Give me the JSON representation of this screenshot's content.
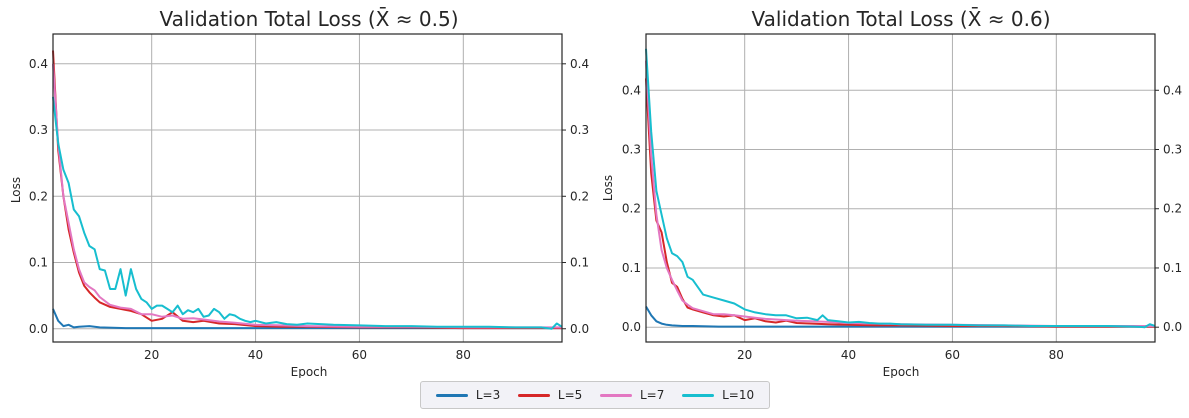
{
  "chart_data": [
    {
      "type": "line",
      "title": "Validation Total Loss (X̄ ≈ 0.5)",
      "xlabel": "Epoch",
      "ylabel": "Loss",
      "xlim": [
        1,
        99
      ],
      "ylim": [
        -0.02,
        0.445
      ],
      "xticks": [
        20,
        40,
        60,
        80
      ],
      "yticks": [
        0.0,
        0.1,
        0.2,
        0.3,
        0.4
      ],
      "grid": true,
      "right_ticks": true,
      "series": [
        {
          "name": "L=3",
          "color": "#1f77b4",
          "x": [
            1,
            2,
            3,
            4,
            5,
            6,
            8,
            10,
            15,
            20,
            30,
            40,
            60,
            80,
            99
          ],
          "values": [
            0.03,
            0.012,
            0.004,
            0.006,
            0.002,
            0.003,
            0.004,
            0.002,
            0.001,
            0.001,
            0.001,
            0.001,
            0.001,
            0.001,
            0.001
          ]
        },
        {
          "name": "L=5",
          "color": "#d62728",
          "x": [
            1,
            2,
            3,
            4,
            5,
            6,
            7,
            8,
            9,
            10,
            12,
            14,
            16,
            18,
            20,
            22,
            24,
            26,
            28,
            30,
            33,
            36,
            40,
            45,
            50,
            60,
            70,
            80,
            90,
            99
          ],
          "values": [
            0.42,
            0.27,
            0.2,
            0.15,
            0.115,
            0.085,
            0.065,
            0.055,
            0.047,
            0.04,
            0.033,
            0.03,
            0.027,
            0.022,
            0.012,
            0.015,
            0.025,
            0.012,
            0.01,
            0.012,
            0.008,
            0.007,
            0.004,
            0.003,
            0.003,
            0.002,
            0.002,
            0.001,
            0.001,
            0.001
          ]
        },
        {
          "name": "L=7",
          "color": "#e377c2",
          "x": [
            1,
            2,
            3,
            4,
            5,
            6,
            7,
            8,
            9,
            10,
            12,
            14,
            16,
            18,
            20,
            22,
            24,
            26,
            28,
            30,
            33,
            36,
            40,
            45,
            50,
            60,
            70,
            80,
            90,
            99
          ],
          "values": [
            0.4,
            0.28,
            0.2,
            0.16,
            0.12,
            0.09,
            0.07,
            0.063,
            0.058,
            0.048,
            0.036,
            0.032,
            0.03,
            0.022,
            0.022,
            0.018,
            0.02,
            0.015,
            0.016,
            0.014,
            0.011,
            0.009,
            0.006,
            0.005,
            0.004,
            0.003,
            0.003,
            0.002,
            0.002,
            0.002
          ]
        },
        {
          "name": "L=10",
          "color": "#17becf",
          "x": [
            1,
            2,
            3,
            4,
            5,
            6,
            7,
            8,
            9,
            10,
            11,
            12,
            13,
            14,
            15,
            16,
            17,
            18,
            19,
            20,
            21,
            22,
            23,
            24,
            25,
            26,
            27,
            28,
            29,
            30,
            31,
            32,
            33,
            34,
            35,
            36,
            37,
            38,
            39,
            40,
            42,
            44,
            46,
            48,
            50,
            55,
            60,
            65,
            70,
            75,
            80,
            85,
            90,
            95,
            97,
            98,
            99
          ],
          "values": [
            0.35,
            0.28,
            0.24,
            0.22,
            0.18,
            0.17,
            0.145,
            0.125,
            0.12,
            0.09,
            0.088,
            0.06,
            0.06,
            0.09,
            0.05,
            0.09,
            0.06,
            0.045,
            0.04,
            0.03,
            0.035,
            0.035,
            0.03,
            0.025,
            0.035,
            0.022,
            0.028,
            0.025,
            0.03,
            0.018,
            0.02,
            0.03,
            0.025,
            0.015,
            0.022,
            0.02,
            0.015,
            0.012,
            0.01,
            0.012,
            0.008,
            0.01,
            0.007,
            0.006,
            0.008,
            0.006,
            0.005,
            0.004,
            0.004,
            0.003,
            0.003,
            0.003,
            0.002,
            0.002,
            0.0,
            0.008,
            0.003
          ]
        }
      ]
    },
    {
      "type": "line",
      "title": "Validation Total Loss (X̄ ≈ 0.6)",
      "xlabel": "Epoch",
      "ylabel": "Loss",
      "xlim": [
        1,
        99
      ],
      "ylim": [
        -0.025,
        0.495
      ],
      "xticks": [
        20,
        40,
        60,
        80
      ],
      "yticks": [
        0.0,
        0.1,
        0.2,
        0.3,
        0.4
      ],
      "grid": true,
      "right_ticks": true,
      "series": [
        {
          "name": "L=3",
          "color": "#1f77b4",
          "x": [
            1,
            2,
            3,
            4,
            5,
            6,
            8,
            10,
            15,
            20,
            30,
            40,
            60,
            80,
            99
          ],
          "values": [
            0.035,
            0.02,
            0.01,
            0.006,
            0.004,
            0.003,
            0.002,
            0.002,
            0.001,
            0.001,
            0.001,
            0.001,
            0.001,
            0.001,
            0.001
          ]
        },
        {
          "name": "L=5",
          "color": "#d62728",
          "x": [
            1,
            2,
            3,
            4,
            5,
            6,
            7,
            8,
            9,
            10,
            12,
            14,
            16,
            18,
            20,
            22,
            24,
            26,
            28,
            30,
            33,
            36,
            40,
            45,
            50,
            60,
            70,
            80,
            90,
            99
          ],
          "values": [
            0.42,
            0.26,
            0.18,
            0.16,
            0.11,
            0.075,
            0.068,
            0.048,
            0.033,
            0.03,
            0.025,
            0.02,
            0.018,
            0.02,
            0.012,
            0.015,
            0.01,
            0.008,
            0.011,
            0.007,
            0.006,
            0.005,
            0.004,
            0.003,
            0.003,
            0.002,
            0.002,
            0.001,
            0.001,
            0.001
          ]
        },
        {
          "name": "L=7",
          "color": "#e377c2",
          "x": [
            1,
            2,
            3,
            4,
            5,
            6,
            7,
            8,
            9,
            10,
            12,
            14,
            16,
            18,
            20,
            22,
            24,
            26,
            28,
            30,
            33,
            36,
            40,
            45,
            50,
            60,
            70,
            80,
            90,
            99
          ],
          "values": [
            0.45,
            0.29,
            0.19,
            0.13,
            0.1,
            0.08,
            0.062,
            0.045,
            0.038,
            0.032,
            0.027,
            0.022,
            0.022,
            0.02,
            0.018,
            0.016,
            0.014,
            0.013,
            0.012,
            0.011,
            0.01,
            0.009,
            0.007,
            0.006,
            0.005,
            0.004,
            0.003,
            0.002,
            0.002,
            0.002
          ]
        },
        {
          "name": "L=10",
          "color": "#17becf",
          "x": [
            1,
            2,
            3,
            4,
            5,
            6,
            7,
            8,
            9,
            10,
            12,
            14,
            16,
            18,
            20,
            22,
            24,
            26,
            28,
            30,
            32,
            34,
            35,
            36,
            38,
            40,
            42,
            44,
            46,
            48,
            50,
            55,
            60,
            65,
            70,
            75,
            80,
            85,
            90,
            95,
            97,
            98,
            99
          ],
          "values": [
            0.47,
            0.33,
            0.23,
            0.19,
            0.15,
            0.125,
            0.12,
            0.11,
            0.085,
            0.08,
            0.055,
            0.05,
            0.045,
            0.04,
            0.03,
            0.025,
            0.022,
            0.02,
            0.02,
            0.015,
            0.016,
            0.012,
            0.02,
            0.012,
            0.01,
            0.008,
            0.009,
            0.007,
            0.006,
            0.006,
            0.005,
            0.004,
            0.004,
            0.003,
            0.003,
            0.002,
            0.002,
            0.002,
            0.002,
            0.001,
            0.0,
            0.005,
            0.002
          ]
        }
      ]
    }
  ],
  "legend": {
    "items": [
      {
        "label": "L=3",
        "color": "#1f77b4"
      },
      {
        "label": "L=5",
        "color": "#d62728"
      },
      {
        "label": "L=7",
        "color": "#e377c2"
      },
      {
        "label": "L=10",
        "color": "#17becf"
      }
    ]
  }
}
